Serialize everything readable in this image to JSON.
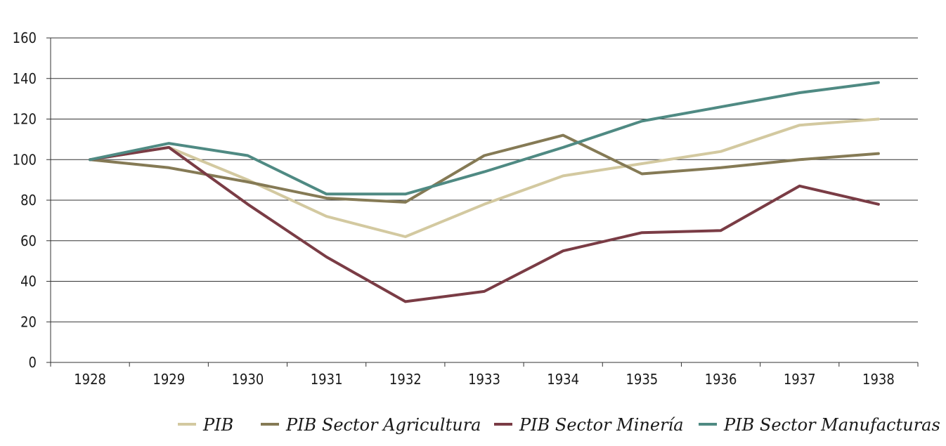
{
  "chart_data": {
    "type": "line",
    "title": "",
    "xlabel": "",
    "ylabel": "",
    "categories": [
      "1928",
      "1929",
      "1930",
      "1931",
      "1932",
      "1933",
      "1934",
      "1935",
      "1936",
      "1937",
      "1938"
    ],
    "ylim": [
      0,
      160
    ],
    "yticks": [
      "0",
      "20",
      "40",
      "60",
      "80",
      "100",
      "120",
      "140",
      "160"
    ],
    "grid": "horizontal",
    "legend_position": "bottom",
    "series": [
      {
        "name": "PIB",
        "color": "#d3c9a0",
        "values": [
          100,
          106,
          90,
          72,
          62,
          78,
          92,
          98,
          104,
          117,
          120
        ]
      },
      {
        "name": "PIB Sector Agricultura",
        "color": "#857a55",
        "values": [
          100,
          96,
          89,
          81,
          79,
          102,
          112,
          93,
          96,
          100,
          103
        ]
      },
      {
        "name": "PIB Sector Minería",
        "color": "#7a3c45",
        "values": [
          100,
          106,
          78,
          52,
          30,
          35,
          55,
          64,
          65,
          87,
          78
        ]
      },
      {
        "name": "PIB Sector Manufacturas",
        "color": "#4f8a83",
        "values": [
          100,
          108,
          102,
          83,
          83,
          94,
          106,
          119,
          126,
          133,
          138
        ]
      }
    ]
  }
}
